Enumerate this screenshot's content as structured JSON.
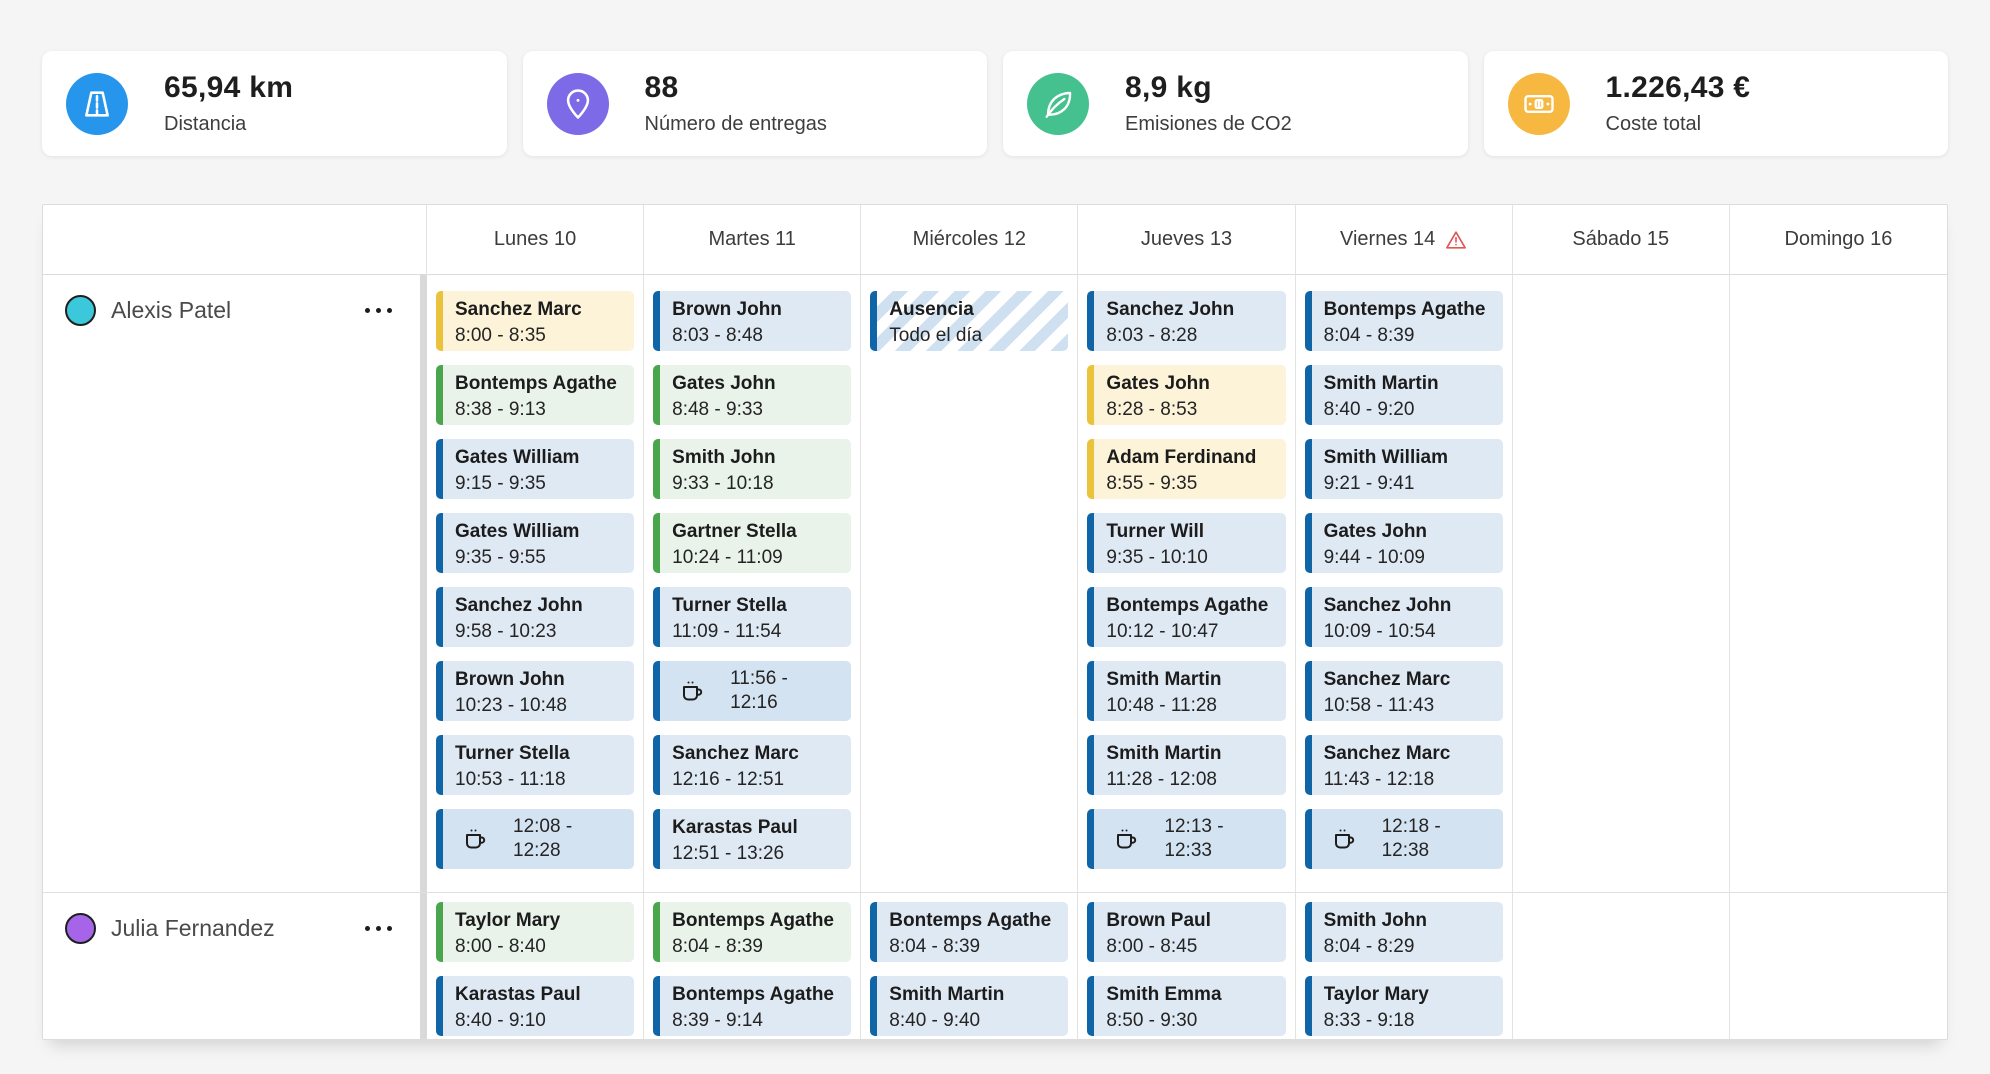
{
  "page_background": "#f5f5f6",
  "stats": [
    {
      "id": "distancia",
      "icon": "road-icon",
      "icon_bg": "#2696EC",
      "value": "65,94 km",
      "label": "Distancia"
    },
    {
      "id": "entregas",
      "icon": "map-pin-icon",
      "icon_bg": "#7D6AE6",
      "value": "88",
      "label": "Número de entregas"
    },
    {
      "id": "co2",
      "icon": "leaf-icon",
      "icon_bg": "#45C08F",
      "value": "8,9 kg",
      "label": "Emisiones de CO2"
    },
    {
      "id": "coste",
      "icon": "banknote-icon",
      "icon_bg": "#F6B840",
      "value": "1.226,43 €",
      "label": "Coste total"
    }
  ],
  "event_colors": {
    "blue": {
      "border": "#1065A7",
      "bg": "#DFE9F4"
    },
    "green": {
      "border": "#4AA64D",
      "bg": "#E9F3EA"
    },
    "yellow": {
      "border": "#EBC23B",
      "bg": "#FCF3D8"
    },
    "break": {
      "border": "#1065A7",
      "bg": "#D4E3F1"
    },
    "absence": {
      "border": "#1065A7",
      "stripe": "#CFE0F0",
      "bg": "#FFFFFF"
    }
  },
  "warning_color": "#DC5A52",
  "calendar": {
    "days": [
      {
        "id": "lunes-10",
        "label": "Lunes 10",
        "warning": false
      },
      {
        "id": "martes-11",
        "label": "Martes 11",
        "warning": false
      },
      {
        "id": "miercoles-12",
        "label": "Miércoles 12",
        "warning": false
      },
      {
        "id": "jueves-13",
        "label": "Jueves 13",
        "warning": false
      },
      {
        "id": "viernes-14",
        "label": "Viernes 14",
        "warning": true
      },
      {
        "id": "sabado-15",
        "label": "Sábado 15",
        "warning": false
      },
      {
        "id": "domingo-16",
        "label": "Domingo 16",
        "warning": false
      }
    ],
    "rows": [
      {
        "id": "alexis-patel",
        "name": "Alexis Patel",
        "avatar_color": "#3BC8DB",
        "days": [
          [
            {
              "type": "yellow",
              "title": "Sanchez Marc",
              "time": "8:00 - 8:35"
            },
            {
              "type": "green",
              "title": "Bontemps Agathe",
              "time": "8:38 - 9:13"
            },
            {
              "type": "blue",
              "title": "Gates William",
              "time": "9:15 - 9:35"
            },
            {
              "type": "blue",
              "title": "Gates William",
              "time": "9:35 - 9:55"
            },
            {
              "type": "blue",
              "title": "Sanchez John",
              "time": "9:58 - 10:23"
            },
            {
              "type": "blue",
              "title": "Brown John",
              "time": "10:23 - 10:48"
            },
            {
              "type": "blue",
              "title": "Turner Stella",
              "time": "10:53 - 11:18"
            },
            {
              "type": "break",
              "time": "12:08 - 12:28"
            }
          ],
          [
            {
              "type": "blue",
              "title": "Brown John",
              "time": "8:03 - 8:48"
            },
            {
              "type": "green",
              "title": "Gates John",
              "time": "8:48 - 9:33"
            },
            {
              "type": "green",
              "title": "Smith John",
              "time": "9:33 - 10:18"
            },
            {
              "type": "green",
              "title": "Gartner Stella",
              "time": "10:24 - 11:09"
            },
            {
              "type": "blue",
              "title": "Turner Stella",
              "time": "11:09 - 11:54"
            },
            {
              "type": "break",
              "time": "11:56 - 12:16"
            },
            {
              "type": "blue",
              "title": "Sanchez Marc",
              "time": "12:16 - 12:51"
            },
            {
              "type": "blue",
              "title": "Karastas Paul",
              "time": "12:51 - 13:26"
            }
          ],
          [
            {
              "type": "absence",
              "title": "Ausencia",
              "subtitle": "Todo el día"
            }
          ],
          [
            {
              "type": "blue",
              "title": "Sanchez John",
              "time": "8:03 - 8:28"
            },
            {
              "type": "yellow",
              "title": "Gates John",
              "time": "8:28 - 8:53"
            },
            {
              "type": "yellow",
              "title": "Adam Ferdinand",
              "time": "8:55 - 9:35"
            },
            {
              "type": "blue",
              "title": "Turner Will",
              "time": "9:35 - 10:10"
            },
            {
              "type": "blue",
              "title": "Bontemps Agathe",
              "time": "10:12 - 10:47"
            },
            {
              "type": "blue",
              "title": "Smith Martin",
              "time": "10:48 - 11:28"
            },
            {
              "type": "blue",
              "title": "Smith Martin",
              "time": "11:28 - 12:08"
            },
            {
              "type": "break",
              "time": "12:13 - 12:33"
            }
          ],
          [
            {
              "type": "blue",
              "title": "Bontemps Agathe",
              "time": "8:04 - 8:39"
            },
            {
              "type": "blue",
              "title": "Smith Martin",
              "time": "8:40 - 9:20"
            },
            {
              "type": "blue",
              "title": "Smith William",
              "time": "9:21 - 9:41"
            },
            {
              "type": "blue",
              "title": "Gates John",
              "time": "9:44 - 10:09"
            },
            {
              "type": "blue",
              "title": "Sanchez John",
              "time": "10:09 - 10:54"
            },
            {
              "type": "blue",
              "title": "Sanchez Marc",
              "time": "10:58 - 11:43"
            },
            {
              "type": "blue",
              "title": "Sanchez Marc",
              "time": "11:43 - 12:18"
            },
            {
              "type": "break",
              "time": "12:18 - 12:38"
            }
          ],
          [],
          []
        ]
      },
      {
        "id": "julia-fernandez",
        "name": "Julia Fernandez",
        "avatar_color": "#A665E8",
        "days": [
          [
            {
              "type": "green",
              "title": "Taylor Mary",
              "time": "8:00 - 8:40"
            },
            {
              "type": "blue",
              "title": "Karastas Paul",
              "time": "8:40 - 9:10"
            }
          ],
          [
            {
              "type": "green",
              "title": "Bontemps Agathe",
              "time": "8:04 - 8:39"
            },
            {
              "type": "blue",
              "title": "Bontemps Agathe",
              "time": "8:39 - 9:14"
            }
          ],
          [
            {
              "type": "blue",
              "title": "Bontemps Agathe",
              "time": "8:04 - 8:39"
            },
            {
              "type": "blue",
              "title": "Smith Martin",
              "time": "8:40 - 9:40"
            }
          ],
          [
            {
              "type": "blue",
              "title": "Brown Paul",
              "time": "8:00 - 8:45"
            },
            {
              "type": "blue",
              "title": "Smith Emma",
              "time": "8:50 - 9:30"
            }
          ],
          [
            {
              "type": "blue",
              "title": "Smith John",
              "time": "8:04 - 8:29"
            },
            {
              "type": "blue",
              "title": "Taylor Mary",
              "time": "8:33 - 9:18"
            }
          ],
          [],
          []
        ]
      }
    ]
  }
}
